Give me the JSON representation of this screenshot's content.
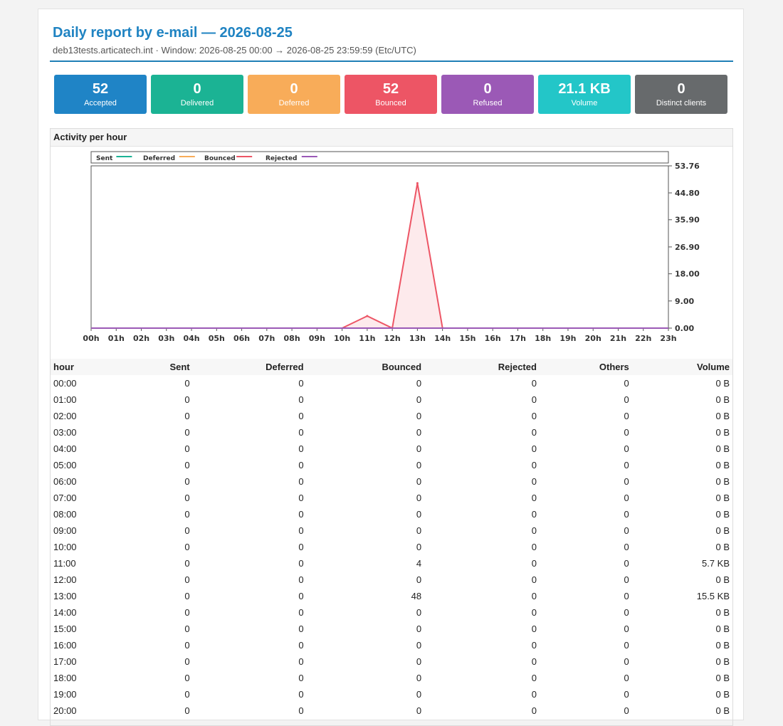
{
  "header": {
    "title": "Daily report by e-mail — 2026-08-25",
    "subtitle": "deb13tests.articatech.int · Window: 2026-08-25 00:00 → 2026-08-25 23:59:59 (Etc/UTC)"
  },
  "stats": [
    {
      "value": "52",
      "label": "Accepted",
      "color": "#1f84c6"
    },
    {
      "value": "0",
      "label": "Delivered",
      "color": "#1bb394"
    },
    {
      "value": "0",
      "label": "Deferred",
      "color": "#f8ac59"
    },
    {
      "value": "52",
      "label": "Bounced",
      "color": "#ed5565"
    },
    {
      "value": "0",
      "label": "Refused",
      "color": "#9b59b6"
    },
    {
      "value": "21.1 KB",
      "label": "Volume",
      "color": "#23c6c8"
    },
    {
      "value": "0",
      "label": "Distinct clients",
      "color": "#676a6c"
    }
  ],
  "panel": {
    "title": "Activity per hour"
  },
  "chart_data": {
    "type": "area",
    "x": [
      "00h",
      "01h",
      "02h",
      "03h",
      "04h",
      "05h",
      "06h",
      "07h",
      "08h",
      "09h",
      "10h",
      "11h",
      "12h",
      "13h",
      "14h",
      "15h",
      "16h",
      "17h",
      "18h",
      "19h",
      "20h",
      "21h",
      "22h",
      "23h"
    ],
    "series": [
      {
        "name": "Sent",
        "color": "#1bb394",
        "values": [
          0,
          0,
          0,
          0,
          0,
          0,
          0,
          0,
          0,
          0,
          0,
          0,
          0,
          0,
          0,
          0,
          0,
          0,
          0,
          0,
          0,
          0,
          0,
          0
        ]
      },
      {
        "name": "Deferred",
        "color": "#f8ac59",
        "values": [
          0,
          0,
          0,
          0,
          0,
          0,
          0,
          0,
          0,
          0,
          0,
          0,
          0,
          0,
          0,
          0,
          0,
          0,
          0,
          0,
          0,
          0,
          0,
          0
        ]
      },
      {
        "name": "Bounced",
        "color": "#ed5565",
        "values": [
          0,
          0,
          0,
          0,
          0,
          0,
          0,
          0,
          0,
          0,
          0,
          4,
          0,
          48,
          0,
          0,
          0,
          0,
          0,
          0,
          0,
          0,
          0,
          0
        ]
      },
      {
        "name": "Rejected",
        "color": "#9b59b6",
        "values": [
          0,
          0,
          0,
          0,
          0,
          0,
          0,
          0,
          0,
          0,
          0,
          0,
          0,
          0,
          0,
          0,
          0,
          0,
          0,
          0,
          0,
          0,
          0,
          0
        ]
      }
    ],
    "yticks": [
      "0.00",
      "9.00",
      "18.00",
      "26.90",
      "35.90",
      "44.80",
      "53.76"
    ],
    "ylim": [
      0,
      53.76
    ],
    "legend": "top",
    "grid": false
  },
  "table": {
    "columns": [
      "hour",
      "Sent",
      "Deferred",
      "Bounced",
      "Rejected",
      "Others",
      "Volume"
    ],
    "rows": [
      [
        "00:00",
        "0",
        "0",
        "0",
        "0",
        "0",
        "0 B"
      ],
      [
        "01:00",
        "0",
        "0",
        "0",
        "0",
        "0",
        "0 B"
      ],
      [
        "02:00",
        "0",
        "0",
        "0",
        "0",
        "0",
        "0 B"
      ],
      [
        "03:00",
        "0",
        "0",
        "0",
        "0",
        "0",
        "0 B"
      ],
      [
        "04:00",
        "0",
        "0",
        "0",
        "0",
        "0",
        "0 B"
      ],
      [
        "05:00",
        "0",
        "0",
        "0",
        "0",
        "0",
        "0 B"
      ],
      [
        "06:00",
        "0",
        "0",
        "0",
        "0",
        "0",
        "0 B"
      ],
      [
        "07:00",
        "0",
        "0",
        "0",
        "0",
        "0",
        "0 B"
      ],
      [
        "08:00",
        "0",
        "0",
        "0",
        "0",
        "0",
        "0 B"
      ],
      [
        "09:00",
        "0",
        "0",
        "0",
        "0",
        "0",
        "0 B"
      ],
      [
        "10:00",
        "0",
        "0",
        "0",
        "0",
        "0",
        "0 B"
      ],
      [
        "11:00",
        "0",
        "0",
        "4",
        "0",
        "0",
        "5.7 KB"
      ],
      [
        "12:00",
        "0",
        "0",
        "0",
        "0",
        "0",
        "0 B"
      ],
      [
        "13:00",
        "0",
        "0",
        "48",
        "0",
        "0",
        "15.5 KB"
      ],
      [
        "14:00",
        "0",
        "0",
        "0",
        "0",
        "0",
        "0 B"
      ],
      [
        "15:00",
        "0",
        "0",
        "0",
        "0",
        "0",
        "0 B"
      ],
      [
        "16:00",
        "0",
        "0",
        "0",
        "0",
        "0",
        "0 B"
      ],
      [
        "17:00",
        "0",
        "0",
        "0",
        "0",
        "0",
        "0 B"
      ],
      [
        "18:00",
        "0",
        "0",
        "0",
        "0",
        "0",
        "0 B"
      ],
      [
        "19:00",
        "0",
        "0",
        "0",
        "0",
        "0",
        "0 B"
      ],
      [
        "20:00",
        "0",
        "0",
        "0",
        "0",
        "0",
        "0 B"
      ]
    ]
  }
}
